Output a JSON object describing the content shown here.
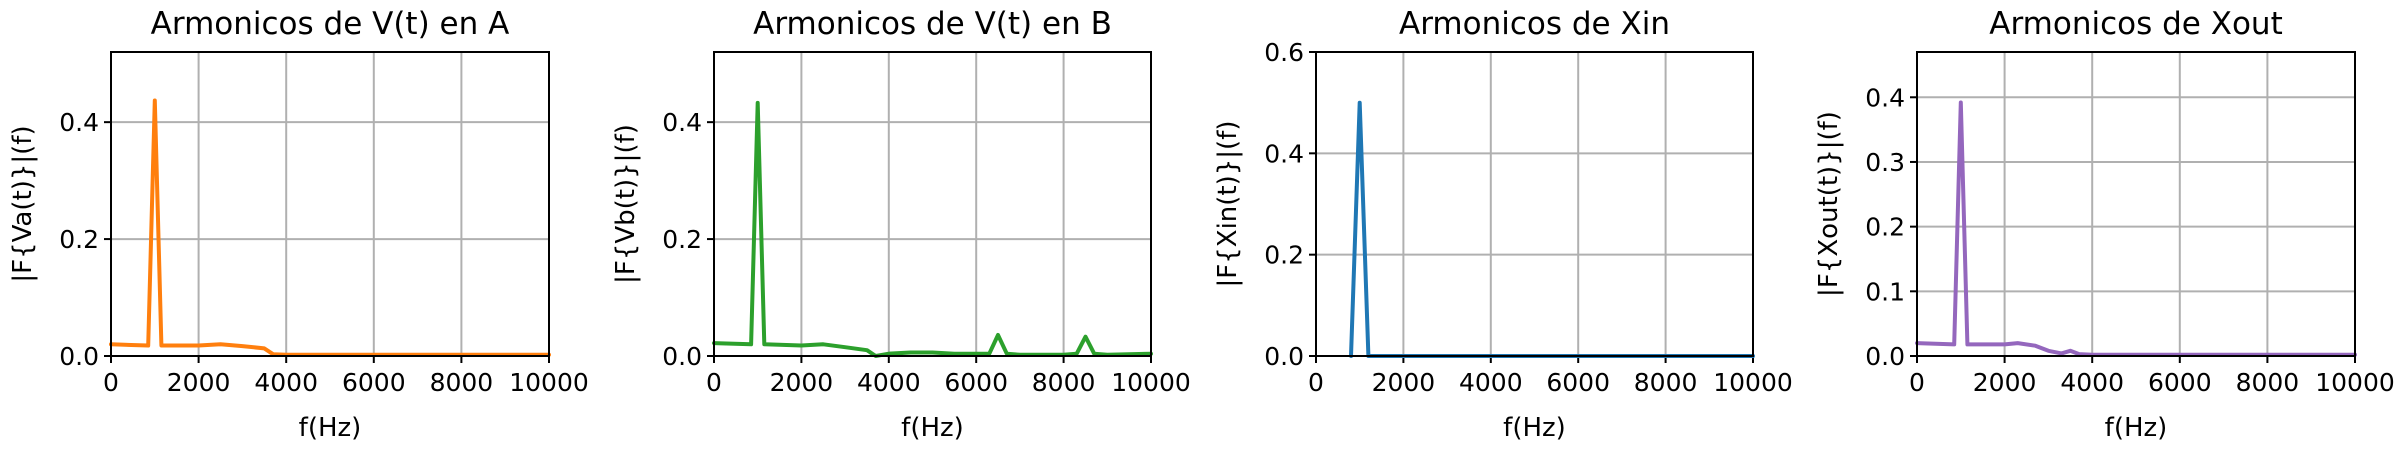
{
  "chart_data": [
    {
      "type": "line",
      "title": "Armonicos de V(t) en A",
      "xlabel": "f(Hz)",
      "ylabel": "|F{Va(t)}|(f)",
      "xlim": [
        0,
        10000
      ],
      "ylim": [
        0,
        0.52
      ],
      "xticks": [
        "0",
        "2000",
        "4000",
        "6000",
        "8000",
        "10000"
      ],
      "yticks": [
        "0.0",
        "0.2",
        "0.4"
      ],
      "grid": true,
      "color": "#ff7f0e",
      "series": [
        {
          "x": [
            0,
            850,
            1000,
            1150,
            2000,
            2500,
            3000,
            3500,
            3700,
            4000,
            5000,
            6000,
            7000,
            8000,
            9000,
            10000
          ],
          "y": [
            0.02,
            0.018,
            0.437,
            0.018,
            0.018,
            0.02,
            0.017,
            0.013,
            0.003,
            0.002,
            0.002,
            0.002,
            0.002,
            0.002,
            0.002,
            0.002
          ]
        }
      ]
    },
    {
      "type": "line",
      "title": "Armonicos de V(t) en B",
      "xlabel": "f(Hz)",
      "ylabel": "|F{Vb(t)}|(f)",
      "xlim": [
        0,
        10000
      ],
      "ylim": [
        0,
        0.52
      ],
      "xticks": [
        "0",
        "2000",
        "4000",
        "6000",
        "8000",
        "10000"
      ],
      "yticks": [
        "0.0",
        "0.2",
        "0.4"
      ],
      "grid": true,
      "color": "#2ca02c",
      "series": [
        {
          "x": [
            0,
            850,
            1000,
            1150,
            2000,
            2500,
            3000,
            3500,
            3700,
            4000,
            4500,
            5000,
            5500,
            6000,
            6300,
            6500,
            6700,
            7000,
            8000,
            8300,
            8500,
            8700,
            9000,
            10000
          ],
          "y": [
            0.022,
            0.02,
            0.433,
            0.02,
            0.018,
            0.02,
            0.015,
            0.01,
            0.0,
            0.004,
            0.006,
            0.006,
            0.004,
            0.004,
            0.004,
            0.036,
            0.004,
            0.002,
            0.002,
            0.004,
            0.033,
            0.004,
            0.002,
            0.004
          ]
        }
      ]
    },
    {
      "type": "line",
      "title": "Armonicos de Xin",
      "xlabel": "f(Hz)",
      "ylabel": "|F{Xin(t)}|(f)",
      "xlim": [
        0,
        10000
      ],
      "ylim": [
        0,
        0.6
      ],
      "xticks": [
        "0",
        "2000",
        "4000",
        "6000",
        "8000",
        "10000"
      ],
      "yticks": [
        "0.0",
        "0.2",
        "0.4",
        "0.6"
      ],
      "grid": true,
      "color": "#1f77b4",
      "series": [
        {
          "x": [
            800,
            1000,
            1200,
            2000,
            4000,
            6000,
            8000,
            10000
          ],
          "y": [
            0.0,
            0.5,
            0.0,
            0.0,
            0.0,
            0.0,
            0.0,
            0.0
          ]
        }
      ]
    },
    {
      "type": "line",
      "title": "Armonicos de Xout",
      "xlabel": "f(Hz)",
      "ylabel": "|F{Xout(t)}|(f)",
      "xlim": [
        0,
        10000
      ],
      "ylim": [
        0,
        0.47
      ],
      "xticks": [
        "0",
        "2000",
        "4000",
        "6000",
        "8000",
        "10000"
      ],
      "yticks": [
        "0.0",
        "0.1",
        "0.2",
        "0.3",
        "0.4"
      ],
      "grid": true,
      "color": "#9467bd",
      "series": [
        {
          "x": [
            0,
            850,
            1000,
            1150,
            2000,
            2300,
            2700,
            3000,
            3300,
            3500,
            3700,
            4000,
            5000,
            6000,
            7000,
            8000,
            9000,
            10000
          ],
          "y": [
            0.02,
            0.018,
            0.392,
            0.018,
            0.018,
            0.02,
            0.016,
            0.008,
            0.004,
            0.008,
            0.003,
            0.002,
            0.002,
            0.002,
            0.002,
            0.002,
            0.002,
            0.002
          ]
        }
      ]
    }
  ]
}
